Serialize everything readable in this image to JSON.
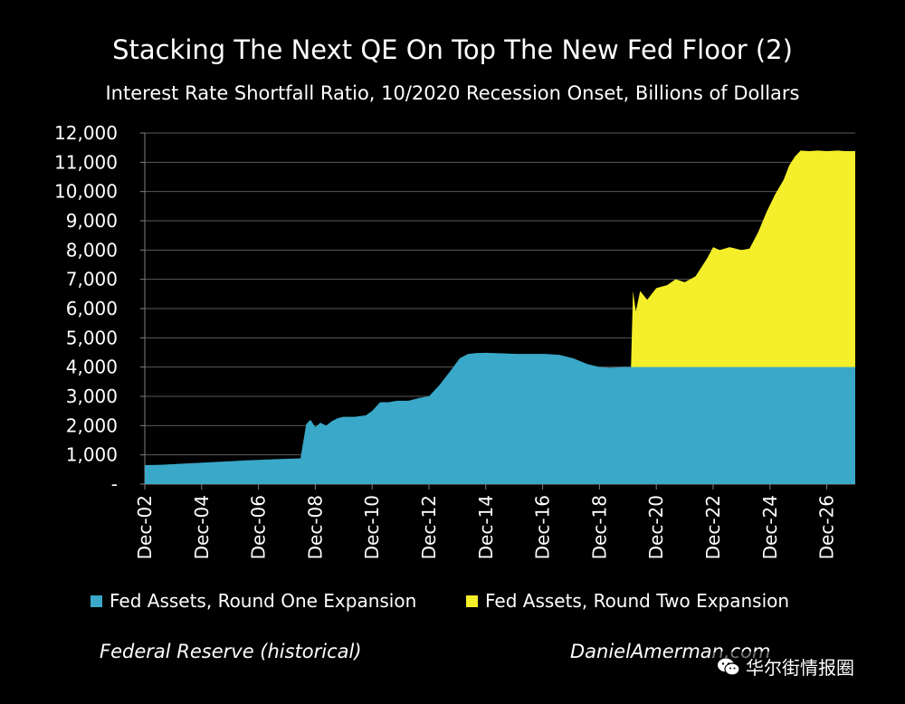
{
  "chart_data": {
    "type": "area",
    "title": "Stacking The Next QE On Top The New Fed Floor (2)",
    "subtitle": "Interest Rate Shortfall Ratio, 10/2020 Recession Onset, Billions of Dollars",
    "xlabel": "",
    "ylabel": "",
    "ylim": [
      0,
      12000
    ],
    "xlim": [
      2002.92,
      2027.92
    ],
    "yticks": [
      0,
      1000,
      2000,
      3000,
      4000,
      5000,
      6000,
      7000,
      8000,
      9000,
      10000,
      11000,
      12000
    ],
    "ytick_labels": [
      "-",
      "1,000",
      "2,000",
      "3,000",
      "4,000",
      "5,000",
      "6,000",
      "7,000",
      "8,000",
      "9,000",
      "10,000",
      "11,000",
      "12,000"
    ],
    "xticks": [
      2002.92,
      2004.92,
      2006.92,
      2008.92,
      2010.92,
      2012.92,
      2014.92,
      2016.92,
      2018.92,
      2020.92,
      2022.92,
      2024.92,
      2026.92
    ],
    "xtick_labels": [
      "Dec-02",
      "Dec-04",
      "Dec-06",
      "Dec-08",
      "Dec-10",
      "Dec-12",
      "Dec-14",
      "Dec-16",
      "Dec-18",
      "Dec-20",
      "Dec-22",
      "Dec-24",
      "Dec-26"
    ],
    "grid": true,
    "legend_position": "bottom",
    "series": [
      {
        "name": "Fed Assets, Round One Expansion",
        "color": "#3aa8c8",
        "x": [
          2002.92,
          2003.5,
          2004.5,
          2005.5,
          2006.5,
          2007.5,
          2008.4,
          2008.6,
          2008.75,
          2008.92,
          2009.1,
          2009.3,
          2009.5,
          2009.7,
          2009.9,
          2010.3,
          2010.7,
          2010.92,
          2011.2,
          2011.5,
          2011.8,
          2012.2,
          2012.6,
          2012.92,
          2013.3,
          2013.7,
          2014.0,
          2014.3,
          2014.6,
          2014.92,
          2015.5,
          2016.0,
          2016.5,
          2017.0,
          2017.5,
          2018.0,
          2018.5,
          2018.92,
          2019.3,
          2019.7,
          2020.0,
          2021.0,
          2022.0,
          2023.0,
          2024.0,
          2025.0,
          2026.0,
          2027.0,
          2027.92
        ],
        "values": [
          650,
          660,
          710,
          760,
          810,
          850,
          880,
          2050,
          2200,
          1950,
          2100,
          2000,
          2150,
          2250,
          2300,
          2300,
          2350,
          2500,
          2800,
          2800,
          2850,
          2850,
          2950,
          3000,
          3400,
          3900,
          4300,
          4450,
          4480,
          4490,
          4470,
          4450,
          4450,
          4450,
          4420,
          4300,
          4100,
          4000,
          3980,
          4000,
          4000,
          4000,
          4000,
          4000,
          4000,
          4000,
          4000,
          4000,
          4000
        ]
      },
      {
        "name": "Fed Assets, Round Two Expansion",
        "color": "#f5ee2a",
        "x": [
          2019.92,
          2020.1,
          2020.2,
          2020.35,
          2020.6,
          2020.92,
          2021.3,
          2021.6,
          2021.92,
          2022.3,
          2022.7,
          2022.92,
          2023.15,
          2023.5,
          2023.92,
          2024.2,
          2024.5,
          2024.8,
          2025.1,
          2025.4,
          2025.6,
          2025.8,
          2026.0,
          2026.3,
          2026.6,
          2026.92,
          2027.3,
          2027.6,
          2027.92
        ],
        "values": [
          0,
          6600,
          5900,
          6600,
          6300,
          6700,
          6800,
          7000,
          6900,
          7100,
          7700,
          8100,
          8000,
          8100,
          8000,
          8050,
          8600,
          9300,
          9900,
          10400,
          10900,
          11200,
          11400,
          11380,
          11400,
          11380,
          11400,
          11380,
          11380
        ]
      }
    ],
    "source_left": "Federal Reserve (historical)",
    "source_right": "DanielAmerman.com"
  },
  "watermark": {
    "text": "华尔街情报圈",
    "icon": "wechat-icon"
  }
}
